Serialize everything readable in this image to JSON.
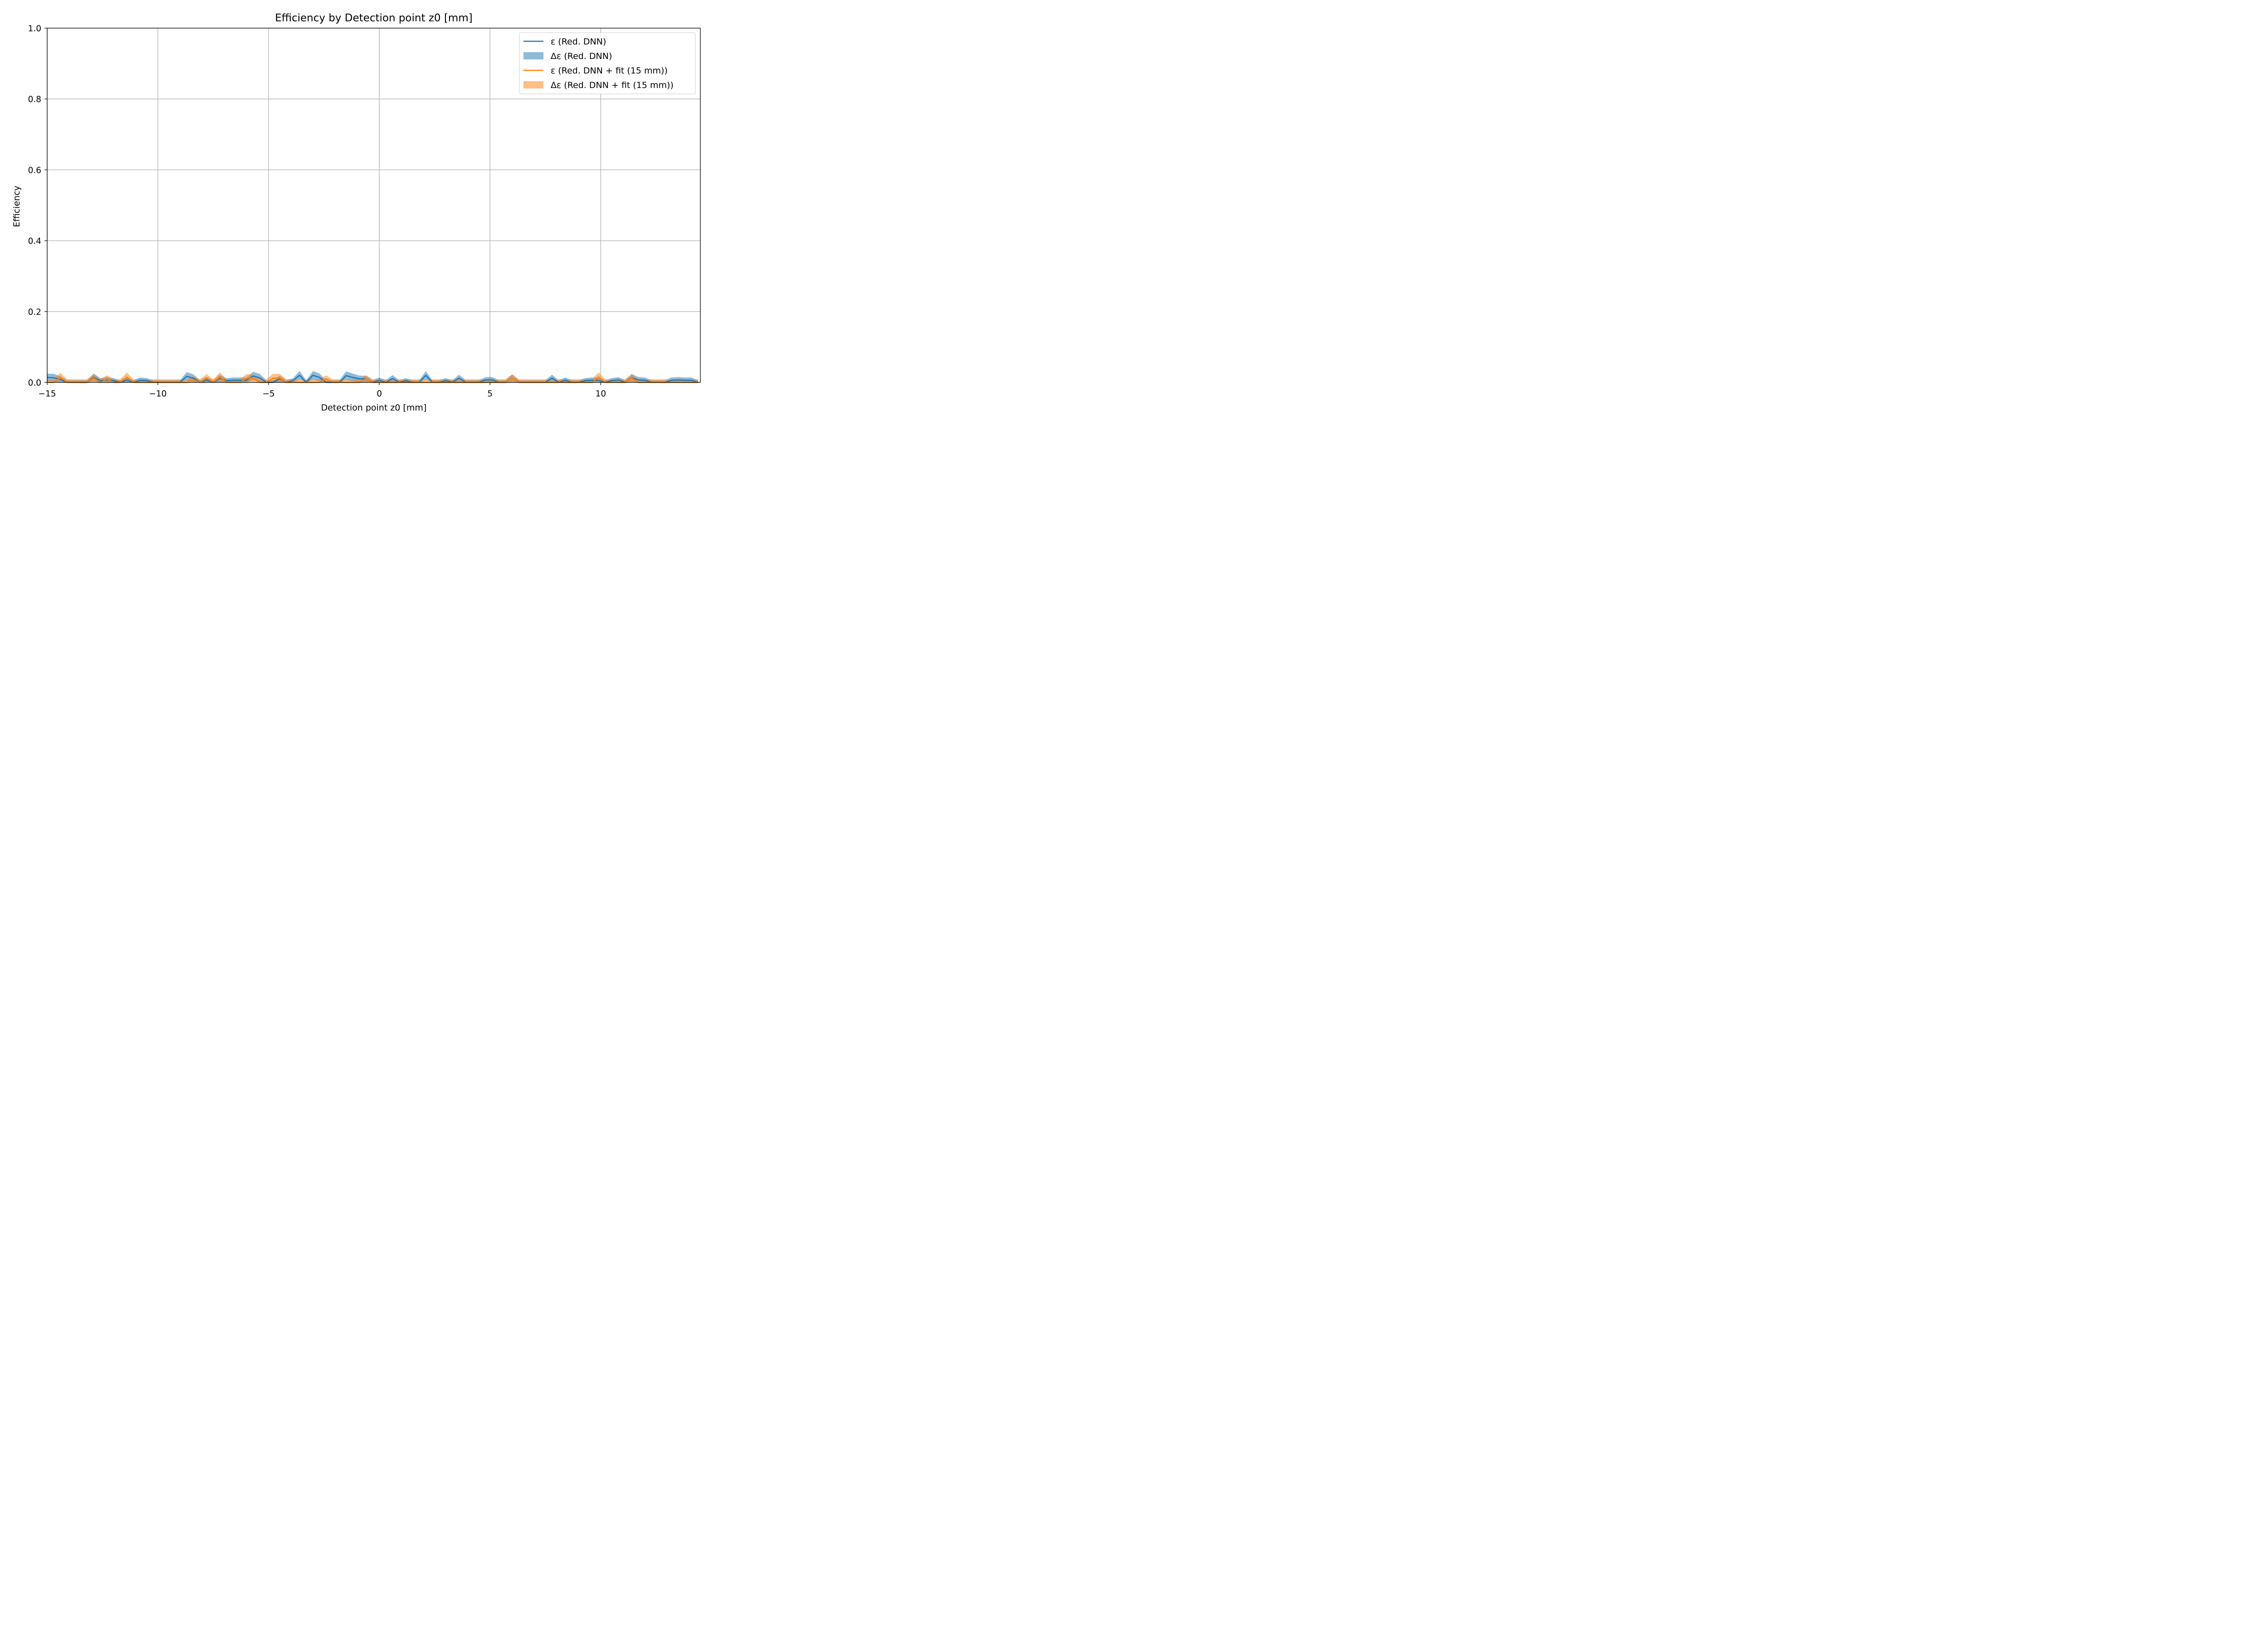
{
  "chart_data": {
    "type": "line",
    "title": "Efficiency by Detection point z0 [mm]",
    "xlabel": "Detection point z0 [mm]",
    "ylabel": "Efficiency",
    "xlim": [
      -15,
      14.5
    ],
    "ylim": [
      0,
      1
    ],
    "grid": true,
    "legend_position": "top-right",
    "x_ticks": [
      {
        "value": -15,
        "label": "−15"
      },
      {
        "value": -10,
        "label": "−10"
      },
      {
        "value": -5,
        "label": "−5"
      },
      {
        "value": 0,
        "label": "0"
      },
      {
        "value": 5,
        "label": "5"
      },
      {
        "value": 10,
        "label": "10"
      }
    ],
    "y_ticks": [
      {
        "value": 0,
        "label": "0.0"
      },
      {
        "value": 0.2,
        "label": "0.2"
      },
      {
        "value": 0.4,
        "label": "0.4"
      },
      {
        "value": 0.6,
        "label": "0.6"
      },
      {
        "value": 0.8,
        "label": "0.8"
      },
      {
        "value": 1.0,
        "label": "1.0"
      }
    ],
    "x": [
      -15.0,
      -14.7,
      -14.4,
      -14.1,
      -13.8,
      -13.5,
      -13.2,
      -12.9,
      -12.6,
      -12.3,
      -12.0,
      -11.7,
      -11.4,
      -11.1,
      -10.8,
      -10.5,
      -10.2,
      -9.9,
      -9.6,
      -9.3,
      -9.0,
      -8.7,
      -8.4,
      -8.1,
      -7.8,
      -7.5,
      -7.2,
      -6.9,
      -6.6,
      -6.3,
      -6.0,
      -5.7,
      -5.4,
      -5.1,
      -4.8,
      -4.5,
      -4.2,
      -3.9,
      -3.6,
      -3.3,
      -3.0,
      -2.7,
      -2.4,
      -2.1,
      -1.8,
      -1.5,
      -1.2,
      -0.9,
      -0.6,
      -0.3,
      0.0,
      0.3,
      0.6,
      0.9,
      1.2,
      1.5,
      1.8,
      2.1,
      2.4,
      2.7,
      3.0,
      3.3,
      3.6,
      3.9,
      4.2,
      4.5,
      4.8,
      5.1,
      5.4,
      5.7,
      6.0,
      6.3,
      6.6,
      6.9,
      7.2,
      7.5,
      7.8,
      8.1,
      8.4,
      8.7,
      9.0,
      9.3,
      9.6,
      9.9,
      10.2,
      10.5,
      10.8,
      11.1,
      11.4,
      11.7,
      12.0,
      12.3,
      12.6,
      12.9,
      13.2,
      13.5,
      13.8,
      14.1,
      14.4
    ],
    "series": [
      {
        "name": "ε (Red. DNN)",
        "color": "#1f77b4",
        "values": [
          0.014,
          0.013,
          0.008,
          0.0,
          0.0,
          0.0,
          0.0,
          0.014,
          0.005,
          0.007,
          0.005,
          0.0,
          0.007,
          0.0,
          0.006,
          0.005,
          0.0,
          0.0,
          0.0,
          0.0,
          0.0,
          0.017,
          0.012,
          0.0,
          0.007,
          0.0,
          0.011,
          0.005,
          0.006,
          0.006,
          0.006,
          0.018,
          0.013,
          0.0,
          0.0,
          0.01,
          0.0,
          0.005,
          0.02,
          0.0,
          0.02,
          0.014,
          0.0,
          0.0,
          0.0,
          0.019,
          0.014,
          0.01,
          0.01,
          0.0,
          0.006,
          0.0,
          0.011,
          0.0,
          0.005,
          0.0,
          0.0,
          0.02,
          0.0,
          0.0,
          0.005,
          0.0,
          0.012,
          0.0,
          0.0,
          0.0,
          0.007,
          0.007,
          0.0,
          0.0,
          0.012,
          0.0,
          0.0,
          0.0,
          0.0,
          0.0,
          0.012,
          0.0,
          0.006,
          0.0,
          0.0,
          0.005,
          0.006,
          0.006,
          0.0,
          0.005,
          0.007,
          0.0,
          0.013,
          0.007,
          0.006,
          0.0,
          0.0,
          0.0,
          0.006,
          0.007,
          0.006,
          0.006,
          0.0
        ],
        "err": [
          0.011,
          0.011,
          0.009,
          0.006,
          0.006,
          0.006,
          0.006,
          0.011,
          0.007,
          0.008,
          0.007,
          0.006,
          0.008,
          0.006,
          0.008,
          0.007,
          0.006,
          0.006,
          0.006,
          0.006,
          0.006,
          0.012,
          0.011,
          0.006,
          0.008,
          0.006,
          0.01,
          0.007,
          0.008,
          0.008,
          0.008,
          0.012,
          0.011,
          0.006,
          0.006,
          0.009,
          0.006,
          0.007,
          0.012,
          0.006,
          0.012,
          0.011,
          0.006,
          0.006,
          0.006,
          0.012,
          0.011,
          0.009,
          0.009,
          0.006,
          0.008,
          0.006,
          0.01,
          0.006,
          0.007,
          0.006,
          0.006,
          0.012,
          0.006,
          0.006,
          0.007,
          0.006,
          0.01,
          0.006,
          0.006,
          0.006,
          0.008,
          0.008,
          0.006,
          0.006,
          0.01,
          0.006,
          0.006,
          0.006,
          0.006,
          0.006,
          0.01,
          0.006,
          0.008,
          0.006,
          0.006,
          0.007,
          0.008,
          0.008,
          0.006,
          0.007,
          0.008,
          0.006,
          0.011,
          0.008,
          0.008,
          0.006,
          0.006,
          0.006,
          0.008,
          0.008,
          0.008,
          0.008,
          0.006
        ]
      },
      {
        "name": "ε (Red. DNN + fit (15 mm))",
        "color": "#ff7f0e",
        "values": [
          0.0,
          0.0,
          0.015,
          0.0,
          0.0,
          0.0,
          0.0,
          0.012,
          0.0,
          0.01,
          0.0,
          0.0,
          0.015,
          0.0,
          0.0,
          0.0,
          0.0,
          0.0,
          0.0,
          0.0,
          0.0,
          0.0,
          0.008,
          0.0,
          0.012,
          0.0,
          0.015,
          0.0,
          0.0,
          0.0,
          0.012,
          0.012,
          0.0,
          0.0,
          0.012,
          0.012,
          0.0,
          0.0,
          0.0,
          0.0,
          0.0,
          0.0,
          0.01,
          0.0,
          0.0,
          0.0,
          0.0,
          0.0,
          0.01,
          0.0,
          0.0,
          0.0,
          0.0,
          0.0,
          0.0,
          0.0,
          0.0,
          0.0,
          0.0,
          0.0,
          0.0,
          0.0,
          0.0,
          0.0,
          0.0,
          0.0,
          0.0,
          0.0,
          0.0,
          0.0,
          0.012,
          0.0,
          0.0,
          0.0,
          0.0,
          0.0,
          0.0,
          0.0,
          0.0,
          0.0,
          0.0,
          0.0,
          0.0,
          0.015,
          0.0,
          0.0,
          0.0,
          0.0,
          0.012,
          0.0,
          0.0,
          0.0,
          0.0,
          0.0,
          0.0,
          0.0,
          0.0,
          0.0,
          0.0
        ],
        "err": [
          0.009,
          0.009,
          0.012,
          0.009,
          0.009,
          0.009,
          0.009,
          0.011,
          0.009,
          0.01,
          0.009,
          0.009,
          0.013,
          0.009,
          0.009,
          0.009,
          0.009,
          0.009,
          0.009,
          0.009,
          0.009,
          0.009,
          0.009,
          0.009,
          0.011,
          0.009,
          0.013,
          0.009,
          0.009,
          0.009,
          0.011,
          0.011,
          0.009,
          0.009,
          0.012,
          0.012,
          0.009,
          0.009,
          0.009,
          0.009,
          0.009,
          0.009,
          0.01,
          0.009,
          0.009,
          0.009,
          0.009,
          0.009,
          0.01,
          0.009,
          0.009,
          0.009,
          0.009,
          0.009,
          0.009,
          0.009,
          0.009,
          0.009,
          0.009,
          0.009,
          0.009,
          0.009,
          0.009,
          0.009,
          0.009,
          0.009,
          0.009,
          0.009,
          0.009,
          0.009,
          0.011,
          0.009,
          0.009,
          0.009,
          0.009,
          0.009,
          0.009,
          0.009,
          0.009,
          0.009,
          0.009,
          0.009,
          0.009,
          0.013,
          0.009,
          0.009,
          0.009,
          0.009,
          0.011,
          0.009,
          0.009,
          0.009,
          0.009,
          0.009,
          0.009,
          0.009,
          0.009,
          0.009,
          0.009
        ]
      }
    ],
    "legend": [
      {
        "label": "ε (Red. DNN)",
        "kind": "line",
        "color": "#1f77b4"
      },
      {
        "label": "Δε (Red. DNN)",
        "kind": "band",
        "color": "#1f77b4"
      },
      {
        "label": "ε (Red. DNN + fit (15 mm))",
        "kind": "line",
        "color": "#ff7f0e"
      },
      {
        "label": "Δε (Red. DNN + fit (15 mm))",
        "kind": "band",
        "color": "#ff7f0e"
      }
    ]
  }
}
